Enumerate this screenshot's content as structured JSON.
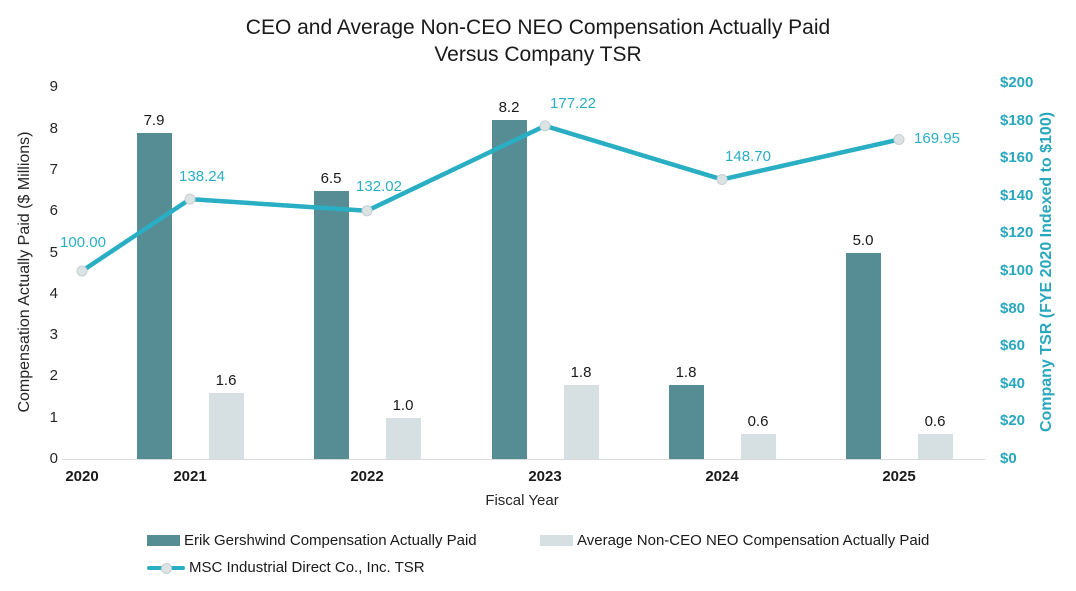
{
  "colors": {
    "accent_teal": "#29AEC4",
    "right_axis_text": "#29A7BD",
    "bar_ceo": "#568D95",
    "bar_neo": "#D6DFE2",
    "marker_fill": "#DCE3E5",
    "marker_edge": "#C6D0D3",
    "axis_line": "#D9D9D9",
    "text": "#1A1A1A"
  },
  "chart_data": {
    "type": "combo-bar-line",
    "title": "CEO and Average Non-CEO NEO Compensation Actually Paid Versus Company TSR",
    "title_lines": [
      "CEO and Average Non-CEO NEO Compensation Actually Paid",
      "Versus Company TSR"
    ],
    "xlabel": "Fiscal Year",
    "ylabel_left": "Compensation Actually Paid ($ Millions)",
    "ylabel_right": "Company TSR (FYE 2020 Indexed to $100)",
    "categories": [
      "2020",
      "2021",
      "2022",
      "2023",
      "2024",
      "2025"
    ],
    "series": [
      {
        "name": "Erik Gershwind Compensation Actually Paid",
        "type": "bar",
        "axis": "left",
        "color": "#568D95",
        "values": [
          null,
          7.9,
          6.5,
          8.2,
          1.8,
          5.0
        ]
      },
      {
        "name": "Average Non-CEO NEO Compensation Actually Paid",
        "type": "bar",
        "axis": "left",
        "color": "#D6DFE2",
        "values": [
          null,
          1.6,
          1.0,
          1.8,
          0.6,
          0.6
        ]
      },
      {
        "name": "MSC Industrial Direct Co., Inc. TSR",
        "type": "line",
        "axis": "right",
        "color": "#29AEC4",
        "values": [
          100.0,
          138.24,
          132.02,
          177.22,
          148.7,
          169.95
        ]
      }
    ],
    "ylim_left": [
      0,
      9
    ],
    "ytick_step_left": 1,
    "ylim_right": [
      0,
      200
    ],
    "ytick_step_right": 20,
    "yaxis_right_prefix": "$",
    "grid": false,
    "legend_position": "bottom"
  }
}
